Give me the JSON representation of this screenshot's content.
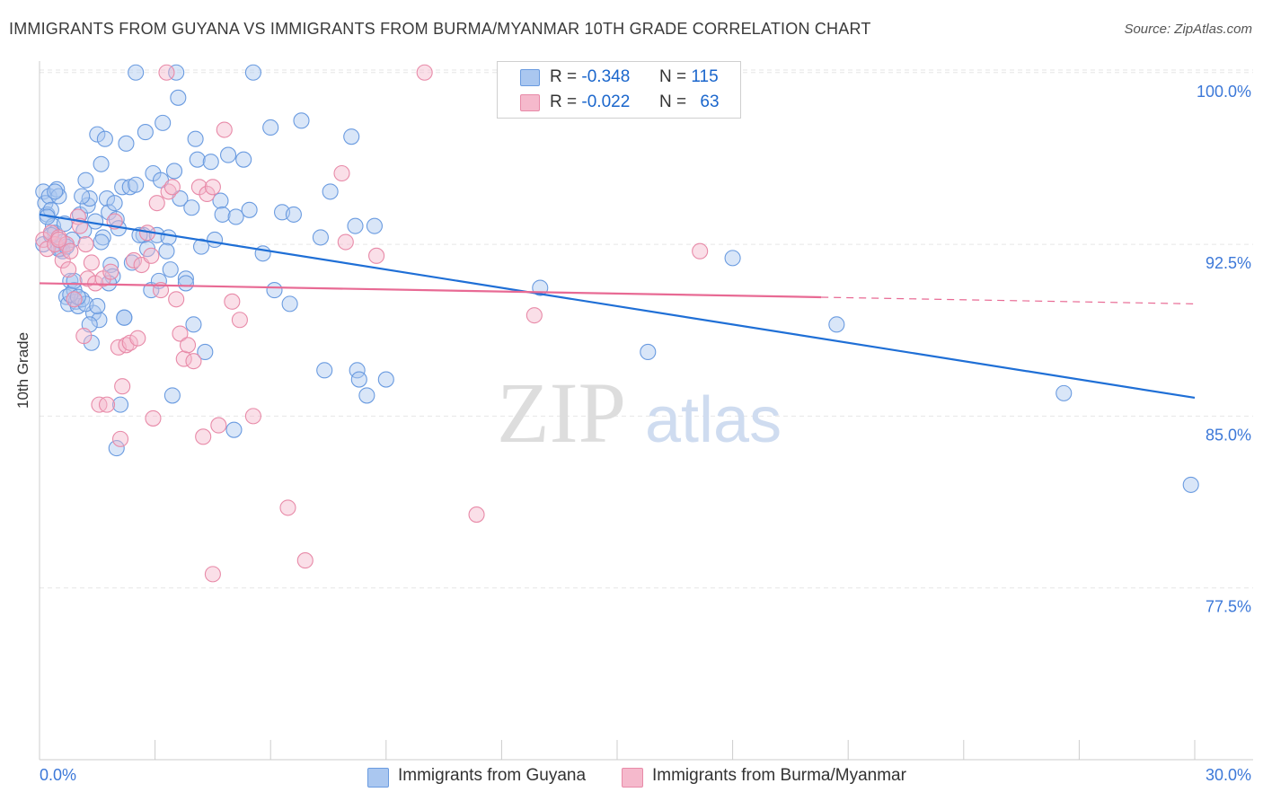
{
  "title": "IMMIGRANTS FROM GUYANA VS IMMIGRANTS FROM BURMA/MYANMAR 10TH GRADE CORRELATION CHART",
  "source": "Source: ZipAtlas.com",
  "watermark": {
    "zip": "ZIP",
    "atlas": "atlas"
  },
  "legend_top": [
    {
      "r_label": "R =",
      "r_value": "-0.348",
      "n_label": "N =",
      "n_value": "115",
      "color": "#aac7f0"
    },
    {
      "r_label": "R =",
      "r_value": "-0.022",
      "n_label": "N =",
      "n_value": "63",
      "color": "#f5b9cc"
    }
  ],
  "chart_data": {
    "type": "scatter",
    "title": "IMMIGRANTS FROM GUYANA VS IMMIGRANTS FROM BURMA/MYANMAR 10TH GRADE CORRELATION CHART",
    "xlabel": "",
    "ylabel": "10th Grade",
    "xlim": [
      0,
      30
    ],
    "ylim": [
      70.0,
      100.5
    ],
    "x_tick_labels": [
      "0.0%",
      "30.0%"
    ],
    "y_ticks": [
      77.5,
      85.0,
      92.5,
      100.0
    ],
    "y_tick_labels": [
      "77.5%",
      "85.0%",
      "92.5%",
      "100.0%"
    ],
    "grid": true,
    "legend_position": "bottom",
    "series": [
      {
        "name": "Immigrants from Guyana",
        "color": "#6a9be0",
        "fill": "#aac7f0",
        "trend": {
          "x0": 0.0,
          "y0": 93.8,
          "x1": 30.0,
          "y1": 85.8,
          "dashed_from": null
        },
        "points": [
          [
            0.1,
            94.8
          ],
          [
            0.15,
            94.3
          ],
          [
            0.2,
            93.8
          ],
          [
            0.25,
            94.6
          ],
          [
            0.3,
            94.0
          ],
          [
            0.35,
            93.3
          ],
          [
            0.4,
            93.0
          ],
          [
            0.45,
            94.9
          ],
          [
            0.5,
            94.6
          ],
          [
            0.55,
            92.3
          ],
          [
            0.6,
            92.6
          ],
          [
            0.65,
            93.4
          ],
          [
            0.7,
            90.2
          ],
          [
            0.75,
            89.9
          ],
          [
            0.8,
            90.9
          ],
          [
            0.85,
            92.7
          ],
          [
            0.9,
            90.5
          ],
          [
            0.95,
            90.0
          ],
          [
            1.0,
            89.8
          ],
          [
            1.05,
            93.8
          ],
          [
            1.1,
            90.1
          ],
          [
            1.15,
            93.1
          ],
          [
            1.2,
            95.3
          ],
          [
            1.25,
            94.2
          ],
          [
            1.3,
            94.5
          ],
          [
            1.35,
            88.2
          ],
          [
            1.4,
            89.5
          ],
          [
            1.45,
            93.5
          ],
          [
            1.5,
            97.3
          ],
          [
            1.55,
            89.2
          ],
          [
            1.6,
            96.0
          ],
          [
            1.65,
            92.8
          ],
          [
            1.7,
            97.1
          ],
          [
            1.75,
            94.5
          ],
          [
            1.8,
            93.9
          ],
          [
            1.85,
            91.6
          ],
          [
            1.9,
            91.1
          ],
          [
            1.95,
            94.3
          ],
          [
            2.0,
            93.6
          ],
          [
            2.05,
            93.2
          ],
          [
            2.1,
            85.5
          ],
          [
            2.15,
            95.0
          ],
          [
            2.2,
            89.3
          ],
          [
            2.25,
            96.9
          ],
          [
            2.35,
            95.0
          ],
          [
            2.5,
            95.1
          ],
          [
            2.7,
            92.9
          ],
          [
            2.75,
            97.4
          ],
          [
            2.8,
            92.3
          ],
          [
            2.9,
            90.5
          ],
          [
            2.95,
            95.6
          ],
          [
            3.05,
            92.9
          ],
          [
            3.15,
            95.3
          ],
          [
            3.2,
            97.8
          ],
          [
            3.35,
            92.8
          ],
          [
            3.4,
            91.4
          ],
          [
            3.45,
            85.9
          ],
          [
            3.5,
            95.7
          ],
          [
            3.55,
            100.0
          ],
          [
            3.65,
            94.5
          ],
          [
            3.8,
            91.0
          ],
          [
            3.95,
            94.1
          ],
          [
            4.0,
            89.0
          ],
          [
            4.05,
            97.1
          ],
          [
            4.1,
            96.2
          ],
          [
            4.2,
            92.4
          ],
          [
            4.45,
            96.1
          ],
          [
            4.55,
            92.7
          ],
          [
            4.7,
            94.4
          ],
          [
            4.75,
            93.8
          ],
          [
            4.9,
            96.4
          ],
          [
            5.1,
            93.7
          ],
          [
            5.3,
            96.2
          ],
          [
            5.45,
            94.0
          ],
          [
            5.55,
            100.0
          ],
          [
            5.8,
            92.1
          ],
          [
            6.0,
            97.6
          ],
          [
            6.1,
            90.5
          ],
          [
            6.3,
            93.9
          ],
          [
            6.5,
            89.9
          ],
          [
            6.6,
            93.8
          ],
          [
            6.8,
            97.9
          ],
          [
            7.3,
            92.8
          ],
          [
            7.4,
            87.0
          ],
          [
            7.55,
            94.8
          ],
          [
            8.1,
            97.2
          ],
          [
            8.2,
            93.3
          ],
          [
            8.25,
            87.0
          ],
          [
            8.3,
            86.6
          ],
          [
            8.5,
            85.9
          ],
          [
            8.7,
            93.3
          ],
          [
            0.1,
            92.5
          ],
          [
            0.2,
            93.7
          ],
          [
            0.3,
            92.9
          ],
          [
            0.4,
            94.8
          ],
          [
            0.6,
            92.2
          ],
          [
            0.8,
            90.3
          ],
          [
            1.2,
            89.9
          ],
          [
            1.3,
            89.0
          ],
          [
            1.0,
            90.2
          ],
          [
            0.5,
            92.3
          ],
          [
            0.7,
            92.4
          ],
          [
            1.8,
            90.8
          ],
          [
            2.2,
            89.3
          ],
          [
            1.5,
            89.8
          ],
          [
            2.0,
            83.6
          ],
          [
            3.1,
            90.9
          ],
          [
            3.8,
            90.8
          ],
          [
            4.3,
            87.8
          ],
          [
            5.05,
            84.4
          ],
          [
            2.6,
            92.9
          ],
          [
            3.3,
            92.2
          ],
          [
            13.0,
            90.6
          ],
          [
            15.8,
            87.8
          ],
          [
            18.0,
            91.9
          ],
          [
            20.7,
            89.0
          ],
          [
            26.6,
            86.0
          ],
          [
            29.9,
            82.0
          ],
          [
            9.0,
            86.6
          ],
          [
            2.5,
            100.0
          ],
          [
            1.1,
            94.6
          ],
          [
            1.6,
            92.6
          ],
          [
            0.9,
            90.9
          ],
          [
            3.6,
            98.9
          ],
          [
            2.4,
            91.7
          ]
        ]
      },
      {
        "name": "Immigrants from Burma/Myanmar",
        "color": "#e88aa8",
        "fill": "#f5b9cc",
        "trend": {
          "x0": 0.0,
          "y0": 90.8,
          "x1": 30.0,
          "y1": 89.9,
          "dashed_from": 20.3
        },
        "points": [
          [
            0.1,
            92.7
          ],
          [
            0.2,
            92.3
          ],
          [
            0.3,
            93.0
          ],
          [
            0.4,
            92.5
          ],
          [
            0.5,
            92.8
          ],
          [
            0.6,
            91.8
          ],
          [
            0.7,
            92.5
          ],
          [
            0.75,
            91.4
          ],
          [
            0.8,
            92.2
          ],
          [
            0.9,
            90.1
          ],
          [
            1.0,
            93.7
          ],
          [
            1.05,
            93.3
          ],
          [
            1.15,
            88.5
          ],
          [
            1.25,
            91.0
          ],
          [
            1.35,
            91.7
          ],
          [
            1.45,
            90.8
          ],
          [
            1.55,
            85.5
          ],
          [
            1.65,
            91.0
          ],
          [
            1.75,
            85.5
          ],
          [
            1.85,
            91.3
          ],
          [
            1.95,
            93.5
          ],
          [
            2.05,
            88.0
          ],
          [
            2.15,
            86.3
          ],
          [
            2.25,
            88.1
          ],
          [
            2.35,
            88.2
          ],
          [
            2.45,
            91.8
          ],
          [
            2.55,
            88.4
          ],
          [
            2.65,
            91.6
          ],
          [
            2.8,
            93.0
          ],
          [
            2.95,
            84.9
          ],
          [
            3.05,
            94.3
          ],
          [
            3.15,
            90.5
          ],
          [
            3.35,
            94.8
          ],
          [
            3.45,
            95.0
          ],
          [
            3.55,
            90.1
          ],
          [
            3.65,
            88.6
          ],
          [
            3.75,
            87.5
          ],
          [
            3.85,
            88.1
          ],
          [
            4.0,
            87.4
          ],
          [
            4.15,
            95.0
          ],
          [
            4.25,
            84.1
          ],
          [
            4.35,
            94.7
          ],
          [
            4.5,
            95.0
          ],
          [
            4.65,
            84.6
          ],
          [
            4.8,
            97.5
          ],
          [
            5.0,
            90.0
          ],
          [
            5.2,
            89.2
          ],
          [
            5.55,
            85.0
          ],
          [
            6.45,
            81.0
          ],
          [
            6.9,
            78.7
          ],
          [
            7.85,
            95.6
          ],
          [
            7.95,
            92.6
          ],
          [
            8.75,
            92.0
          ],
          [
            11.35,
            80.7
          ],
          [
            12.85,
            89.4
          ],
          [
            17.15,
            92.2
          ],
          [
            3.3,
            100.0
          ],
          [
            10.0,
            100.0
          ],
          [
            2.1,
            84.0
          ],
          [
            1.2,
            92.5
          ],
          [
            0.5,
            92.7
          ],
          [
            2.9,
            92.0
          ],
          [
            4.5,
            78.1
          ]
        ]
      }
    ]
  },
  "legend_bottom": [
    {
      "label": "Immigrants from Guyana",
      "color": "#aac7f0",
      "border": "#6a9be0"
    },
    {
      "label": "Immigrants from Burma/Myanmar",
      "color": "#f5b9cc",
      "border": "#e88aa8"
    }
  ]
}
